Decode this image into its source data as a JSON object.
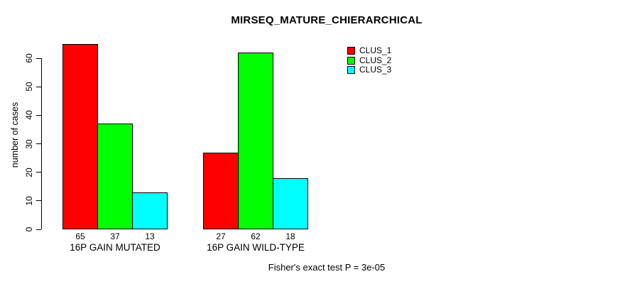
{
  "chart_data": {
    "type": "bar",
    "title": "MIRSEQ_MATURE_CHIERARCHICAL",
    "ylabel": "number of cases",
    "xlabel": "",
    "ylim": [
      0,
      65
    ],
    "axis_ticks_y": [
      0,
      10,
      20,
      30,
      40,
      50,
      60
    ],
    "grid": false,
    "grouped": true,
    "show_bar_values": true,
    "categories": [
      "16P GAIN MUTATED",
      "16P GAIN WILD-TYPE"
    ],
    "series": [
      {
        "name": "CLUS_1",
        "color": "#ff0000",
        "values": [
          65,
          27
        ]
      },
      {
        "name": "CLUS_2",
        "color": "#00ff00",
        "values": [
          37,
          62
        ]
      },
      {
        "name": "CLUS_3",
        "color": "#00ffff",
        "values": [
          13,
          18
        ]
      }
    ],
    "legend": {
      "position": "top-right",
      "entries": [
        "CLUS_1",
        "CLUS_2",
        "CLUS_3"
      ]
    },
    "annotation": "Fisher's exact test P = 3e-05"
  },
  "colors": {
    "background": "#ffffff",
    "axis": "#000000",
    "text": "#000000",
    "clus_1": "#ff0000",
    "clus_2": "#00ff00",
    "clus_3": "#00ffff"
  }
}
